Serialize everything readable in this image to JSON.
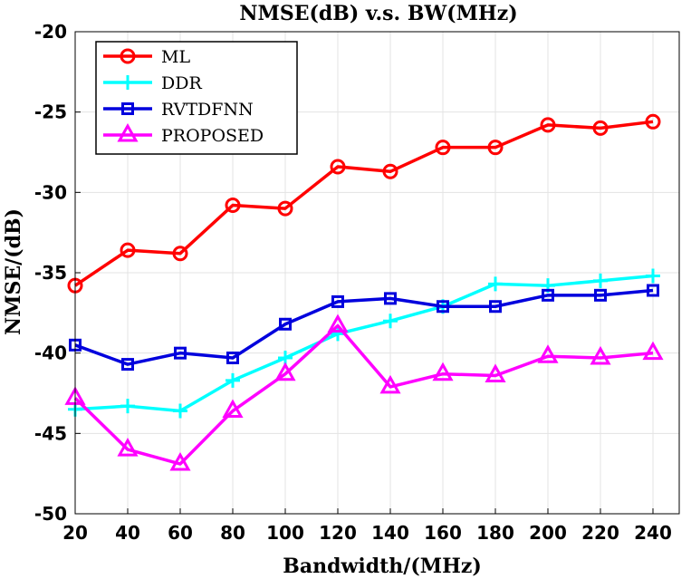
{
  "chart_data": {
    "type": "line",
    "title": "NMSE(dB) v.s. BW(MHz)",
    "xlabel": "Bandwidth/(MHz)",
    "ylabel": "NMSE/(dB)",
    "x": [
      20,
      40,
      60,
      80,
      100,
      120,
      140,
      160,
      180,
      200,
      220,
      240
    ],
    "xlim": [
      20,
      250
    ],
    "ylim": [
      -50,
      -20
    ],
    "xticks": [
      20,
      40,
      60,
      80,
      100,
      120,
      140,
      160,
      180,
      200,
      220,
      240
    ],
    "yticks": [
      -50,
      -45,
      -40,
      -35,
      -30,
      -25,
      -20
    ],
    "grid": true,
    "legend_position": "top-left",
    "series": [
      {
        "name": "ML",
        "color": "#ff0000",
        "marker": "circle",
        "values": [
          -35.8,
          -33.6,
          -33.8,
          -30.8,
          -31.0,
          -28.4,
          -28.7,
          -27.2,
          -27.2,
          -25.8,
          -26.0,
          -25.6
        ]
      },
      {
        "name": "DDR",
        "color": "#00ffff",
        "marker": "plus",
        "values": [
          -43.5,
          -43.3,
          -43.6,
          -41.7,
          -40.3,
          -38.8,
          -38.0,
          -37.1,
          -35.7,
          -35.8,
          -35.5,
          -35.2
        ]
      },
      {
        "name": "RVTDFNN",
        "color": "#0000dd",
        "marker": "square",
        "values": [
          -39.5,
          -40.7,
          -40.0,
          -40.3,
          -38.2,
          -36.8,
          -36.6,
          -37.1,
          -37.1,
          -36.4,
          -36.4,
          -36.1
        ]
      },
      {
        "name": "PROPOSED",
        "color": "#ff00ff",
        "marker": "triangle",
        "values": [
          -42.8,
          -46.0,
          -46.9,
          -43.6,
          -41.3,
          -38.3,
          -42.1,
          -41.3,
          -41.4,
          -40.2,
          -40.3,
          -40.0
        ]
      }
    ]
  }
}
